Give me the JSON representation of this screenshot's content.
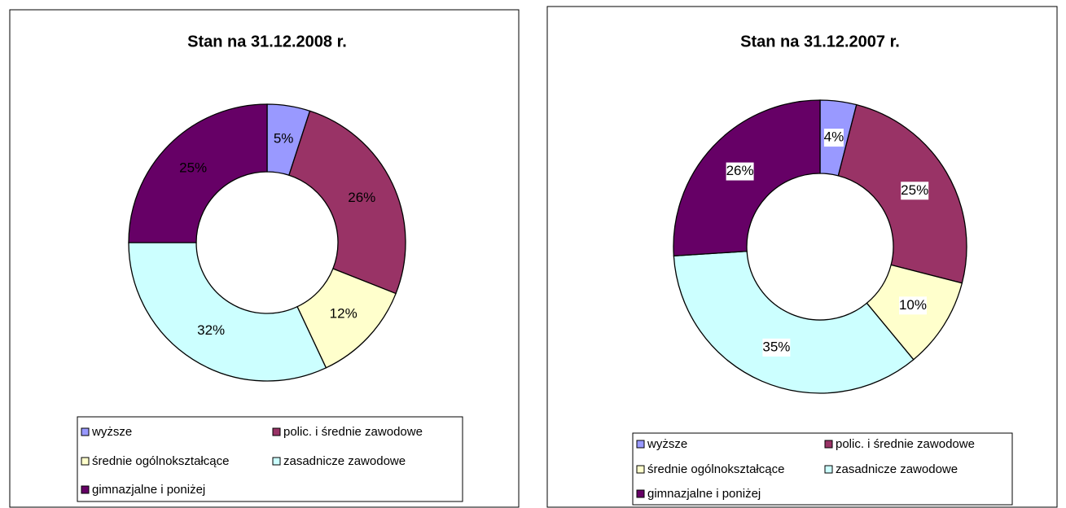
{
  "chart_data": [
    {
      "type": "pie",
      "title": "Stan na 31.12.2008 r.",
      "categories": [
        "wyższe",
        "polic. i średnie zawodowe",
        "średnie ogólnokształcące",
        "zasadnicze zawodowe",
        "gimnazjalne i poniżej"
      ],
      "values": [
        5,
        26,
        12,
        32,
        25
      ],
      "value_labels": [
        "5%",
        "26%",
        "12%",
        "32%",
        "25%"
      ],
      "colors": [
        "#9999ff",
        "#993366",
        "#ffffcc",
        "#ccffff",
        "#660066"
      ]
    },
    {
      "type": "pie",
      "title": "Stan na 31.12.2007 r.",
      "categories": [
        "wyższe",
        "polic. i średnie zawodowe",
        "średnie ogólnokształcące",
        "zasadnicze zawodowe",
        "gimnazjalne i poniżej"
      ],
      "values": [
        4,
        25,
        10,
        35,
        26
      ],
      "value_labels": [
        "4%",
        "25%",
        "10%",
        "35%",
        "26%"
      ],
      "colors": [
        "#9999ff",
        "#993366",
        "#ffffcc",
        "#ccffff",
        "#660066"
      ]
    }
  ]
}
